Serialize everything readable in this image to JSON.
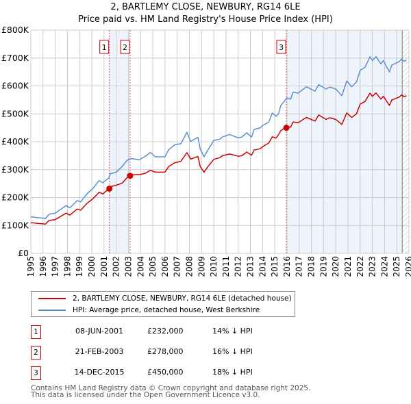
{
  "chart_data": {
    "type": "line",
    "title": "2, BARTLEMY CLOSE, NEWBURY, RG14 6LE",
    "subtitle": "Price paid vs. HM Land Registry's House Price Index (HPI)",
    "xlim": [
      1995,
      2026
    ],
    "ylim": [
      0,
      800000
    ],
    "yticks": [
      {
        "v": 0,
        "label": "£0"
      },
      {
        "v": 100000,
        "label": "£100K"
      },
      {
        "v": 200000,
        "label": "£200K"
      },
      {
        "v": 300000,
        "label": "£300K"
      },
      {
        "v": 400000,
        "label": "£400K"
      },
      {
        "v": 500000,
        "label": "£500K"
      },
      {
        "v": 600000,
        "label": "£600K"
      },
      {
        "v": 700000,
        "label": "£700K"
      },
      {
        "v": 800000,
        "label": "£800K"
      }
    ],
    "xticks": [
      "1995",
      "1996",
      "1997",
      "1998",
      "1999",
      "2000",
      "2001",
      "2002",
      "2003",
      "2004",
      "2005",
      "2006",
      "2007",
      "2008",
      "2009",
      "2010",
      "2011",
      "2012",
      "2013",
      "2014",
      "2015",
      "2016",
      "2017",
      "2018",
      "2019",
      "2020",
      "2021",
      "2022",
      "2023",
      "2024",
      "2025",
      "2026"
    ],
    "grid": true,
    "shaded_ranges": [
      [
        2001.44,
        2003.14
      ],
      [
        2015.95,
        2025.45
      ]
    ],
    "hatched_from": 2025.45,
    "x": [
      1995,
      1996.2,
      1996.5,
      1997,
      1997.9,
      1998.2,
      1998.8,
      1999.1,
      1999.6,
      2000.1,
      2000.6,
      2000.9,
      2001.4,
      2001.5,
      2002,
      2002.5,
      2002.9,
      2003.2,
      2003.9,
      2004.4,
      2004.8,
      2005.2,
      2006,
      2006.3,
      2006.8,
      2007.3,
      2007.8,
      2008.1,
      2008.7,
      2008.9,
      2009.2,
      2009.5,
      2010,
      2010.5,
      2010.7,
      2011.3,
      2012,
      2012.3,
      2012.7,
      2013.1,
      2013.3,
      2013.8,
      2014,
      2014.5,
      2014.8,
      2015.1,
      2015.3,
      2015.5,
      2016,
      2016.3,
      2016.5,
      2016.9,
      2017.6,
      2018.3,
      2018.6,
      2019.2,
      2019.5,
      2020,
      2020.5,
      2020.9,
      2021.3,
      2021.7,
      2022,
      2022.4,
      2022.8,
      2023,
      2023.3,
      2023.7,
      2023.9,
      2024.4,
      2024.6,
      2025.2,
      2025.4,
      2025.6,
      2025.8
    ],
    "series": [
      {
        "name": "2, BARTLEMY CLOSE, NEWBURY, RG14 6LE (detached house)",
        "color": "#cc0000",
        "values": [
          110,
          105,
          118,
          121,
          144,
          137,
          159,
          155,
          179,
          196,
          219,
          213,
          232,
          239,
          244,
          252,
          272,
          282,
          282,
          287,
          298,
          291,
          291,
          311,
          325,
          330,
          361,
          338,
          347,
          310,
          291,
          310,
          337,
          343,
          350,
          356,
          348,
          350,
          363,
          352,
          370,
          375,
          382,
          395,
          418,
          413,
          425,
          440,
          455,
          452,
          471,
          468,
          487,
          474,
          496,
          480,
          486,
          480,
          462,
          503,
          487,
          500,
          535,
          544,
          574,
          563,
          575,
          553,
          563,
          530,
          550,
          560,
          568,
          561,
          565
        ]
      },
      {
        "name": "HPI: Average price, detached house, West Berkshire",
        "color": "#5b8fd0",
        "values": [
          131,
          125,
          140,
          144,
          171,
          163,
          189,
          185,
          213,
          233,
          261,
          253,
          271,
          285,
          291,
          312,
          334,
          340,
          336,
          348,
          362,
          346,
          346,
          371,
          389,
          393,
          434,
          401,
          416,
          373,
          346,
          369,
          405,
          409,
          417,
          426,
          414,
          417,
          432,
          417,
          444,
          450,
          458,
          470,
          503,
          491,
          500,
          530,
          557,
          553,
          578,
          574,
          597,
          581,
          605,
          589,
          596,
          589,
          565,
          618,
          597,
          614,
          656,
          667,
          704,
          691,
          705,
          679,
          691,
          650,
          675,
          687,
          697,
          688,
          693
        ]
      }
    ],
    "value_unit": "thousands GBP",
    "sales": [
      {
        "n": "1",
        "x": 2001.44,
        "price": 232000,
        "date": "08-JUN-2001",
        "price_label": "£232,000",
        "hpi": "14% ↓ HPI"
      },
      {
        "n": "2",
        "x": 2003.14,
        "price": 278000,
        "date": "21-FEB-2003",
        "price_label": "£278,000",
        "hpi": "16% ↓ HPI"
      },
      {
        "n": "3",
        "x": 2015.95,
        "price": 450000,
        "date": "14-DEC-2015",
        "price_label": "£450,000",
        "hpi": "18% ↓ HPI"
      }
    ],
    "legend_placement": "below"
  },
  "footer": {
    "line1": "Contains HM Land Registry data © Crown copyright and database right 2025.",
    "line2": "This data is licensed under the Open Government Licence v3.0."
  }
}
